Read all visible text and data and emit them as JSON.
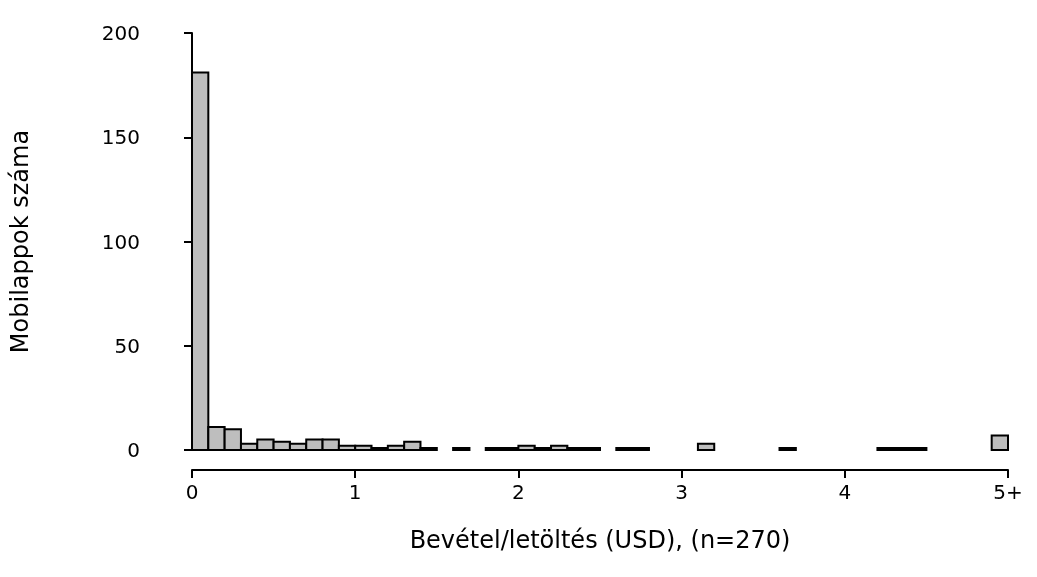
{
  "chart_data": {
    "type": "histogram",
    "xlabel": "Bevétel/letöltés (USD), (n=270)",
    "ylabel": "Mobilappok száma",
    "bins": [
      0,
      0.1,
      0.2,
      0.3,
      0.4,
      0.5,
      0.6,
      0.7,
      0.8,
      0.9,
      1,
      1.1,
      1.2,
      1.3,
      1.4,
      1.5,
      1.6,
      1.7,
      1.8,
      1.9,
      2,
      2.1,
      2.2,
      2.3,
      2.4,
      2.5,
      2.6,
      2.7,
      2.8,
      2.9,
      3,
      3.1,
      3.2,
      3.3,
      3.4,
      3.5,
      3.6,
      3.7,
      3.8,
      3.9,
      4,
      4.1,
      4.2,
      4.3,
      4.4,
      4.5,
      4.6,
      4.7,
      4.8,
      4.9,
      5
    ],
    "values": [
      181,
      11,
      10,
      3,
      5,
      4,
      3,
      5,
      5,
      2,
      2,
      1,
      2,
      4,
      1,
      0,
      1,
      0,
      1,
      1,
      2,
      1,
      2,
      1,
      1,
      0,
      1,
      1,
      0,
      0,
      0,
      3,
      0,
      0,
      0,
      0,
      1,
      0,
      0,
      0,
      0,
      0,
      1,
      1,
      1,
      0,
      0,
      0,
      0,
      7
    ],
    "color": "#bebebe",
    "xlim": [
      0,
      5
    ],
    "xticks": [
      0,
      1,
      2,
      3,
      4,
      {
        "value": 5,
        "label": "5+"
      }
    ],
    "ylim": [
      0,
      200
    ],
    "yticks": [
      0,
      50,
      100,
      150,
      200
    ],
    "grid": false
  }
}
